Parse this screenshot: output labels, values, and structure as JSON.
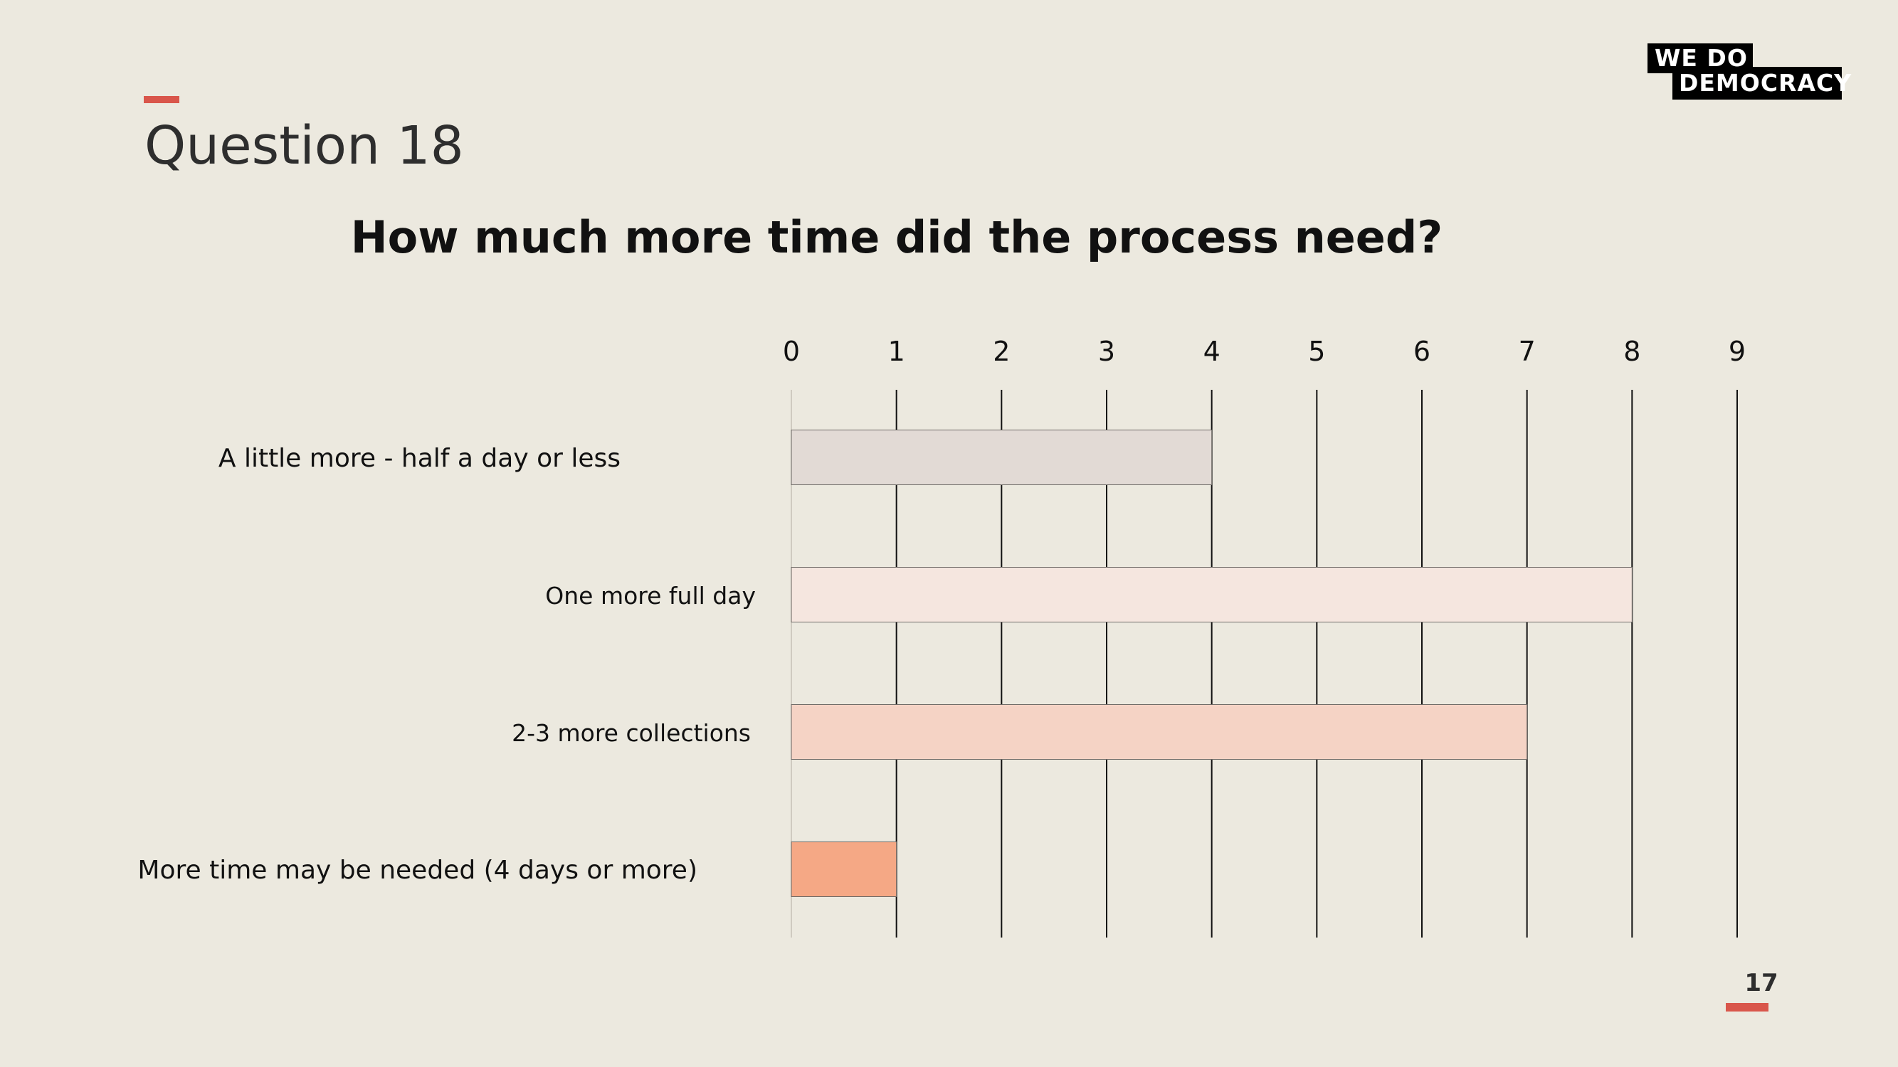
{
  "header": {
    "title": "Question 18"
  },
  "logo": {
    "line1": "WE  DO",
    "line2": "DEMOCRACY"
  },
  "footer": {
    "page_number": "17"
  },
  "colors": {
    "accent": "#D9564B",
    "background": "#ECE9DF"
  },
  "chart_data": {
    "type": "bar",
    "orientation": "horizontal",
    "title": "How much more time did the process need?",
    "xlabel": "",
    "ylabel": "",
    "xlim": [
      0,
      9
    ],
    "x_ticks": [
      0,
      1,
      2,
      3,
      4,
      5,
      6,
      7,
      8,
      9
    ],
    "axis_position": "top",
    "grid": true,
    "categories": [
      "A little more - half a day or less",
      "One more full day",
      "2-3 more collections",
      "More time may be needed (4 days or more)"
    ],
    "values": [
      4,
      8,
      7,
      1
    ],
    "bar_colors": [
      "#E2DAD5",
      "#F5E6DF",
      "#F5D3C5",
      "#F5A885"
    ]
  }
}
